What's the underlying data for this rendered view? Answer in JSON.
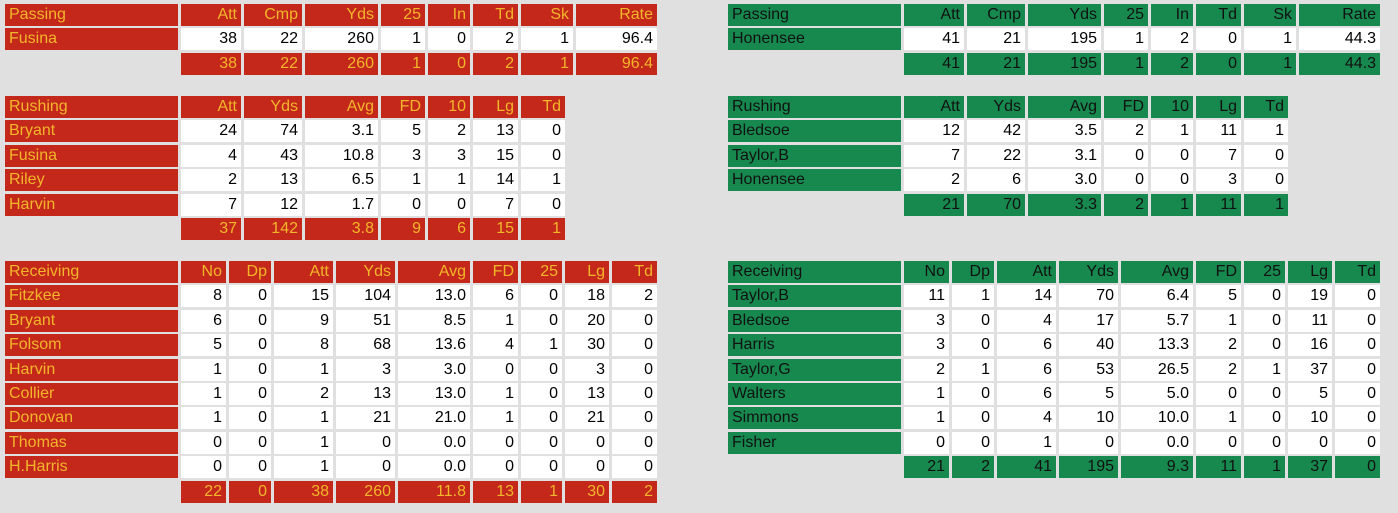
{
  "teams": [
    {
      "passing": {
        "header": [
          "Passing",
          "Att",
          "Cmp",
          "Yds",
          "25",
          "In",
          "Td",
          "Sk",
          "Rate"
        ],
        "rows": [
          [
            "Fusina",
            "38",
            "22",
            "260",
            "1",
            "0",
            "2",
            "1",
            "96.4"
          ]
        ],
        "totals": [
          "38",
          "22",
          "260",
          "1",
          "0",
          "2",
          "1",
          "96.4"
        ]
      },
      "rushing": {
        "header": [
          "Rushing",
          "Att",
          "Yds",
          "Avg",
          "FD",
          "10",
          "Lg",
          "Td"
        ],
        "rows": [
          [
            "Bryant",
            "24",
            "74",
            "3.1",
            "5",
            "2",
            "13",
            "0"
          ],
          [
            "Fusina",
            "4",
            "43",
            "10.8",
            "3",
            "3",
            "15",
            "0"
          ],
          [
            "Riley",
            "2",
            "13",
            "6.5",
            "1",
            "1",
            "14",
            "1"
          ],
          [
            "Harvin",
            "7",
            "12",
            "1.7",
            "0",
            "0",
            "7",
            "0"
          ]
        ],
        "totals": [
          "37",
          "142",
          "3.8",
          "9",
          "6",
          "15",
          "1"
        ]
      },
      "receiving": {
        "header": [
          "Receiving",
          "No",
          "Dp",
          "Att",
          "Yds",
          "Avg",
          "FD",
          "25",
          "Lg",
          "Td"
        ],
        "rows": [
          [
            "Fitzkee",
            "8",
            "0",
            "15",
            "104",
            "13.0",
            "6",
            "0",
            "18",
            "2"
          ],
          [
            "Bryant",
            "6",
            "0",
            "9",
            "51",
            "8.5",
            "1",
            "0",
            "20",
            "0"
          ],
          [
            "Folsom",
            "5",
            "0",
            "8",
            "68",
            "13.6",
            "4",
            "1",
            "30",
            "0"
          ],
          [
            "Harvin",
            "1",
            "0",
            "1",
            "3",
            "3.0",
            "0",
            "0",
            "3",
            "0"
          ],
          [
            "Collier",
            "1",
            "0",
            "2",
            "13",
            "13.0",
            "1",
            "0",
            "13",
            "0"
          ],
          [
            "Donovan",
            "1",
            "0",
            "1",
            "21",
            "21.0",
            "1",
            "0",
            "21",
            "0"
          ],
          [
            "Thomas",
            "0",
            "0",
            "1",
            "0",
            "0.0",
            "0",
            "0",
            "0",
            "0"
          ],
          [
            "H.Harris",
            "0",
            "0",
            "1",
            "0",
            "0.0",
            "0",
            "0",
            "0",
            "0"
          ]
        ],
        "totals": [
          "22",
          "0",
          "38",
          "260",
          "11.8",
          "13",
          "1",
          "30",
          "2"
        ]
      }
    },
    {
      "passing": {
        "header": [
          "Passing",
          "Att",
          "Cmp",
          "Yds",
          "25",
          "In",
          "Td",
          "Sk",
          "Rate"
        ],
        "rows": [
          [
            "Honensee",
            "41",
            "21",
            "195",
            "1",
            "2",
            "0",
            "1",
            "44.3"
          ]
        ],
        "totals": [
          "41",
          "21",
          "195",
          "1",
          "2",
          "0",
          "1",
          "44.3"
        ]
      },
      "rushing": {
        "header": [
          "Rushing",
          "Att",
          "Yds",
          "Avg",
          "FD",
          "10",
          "Lg",
          "Td"
        ],
        "rows": [
          [
            "Bledsoe",
            "12",
            "42",
            "3.5",
            "2",
            "1",
            "11",
            "1"
          ],
          [
            "Taylor,B",
            "7",
            "22",
            "3.1",
            "0",
            "0",
            "7",
            "0"
          ],
          [
            "Honensee",
            "2",
            "6",
            "3.0",
            "0",
            "0",
            "3",
            "0"
          ]
        ],
        "totals": [
          "21",
          "70",
          "3.3",
          "2",
          "1",
          "11",
          "1"
        ]
      },
      "receiving": {
        "header": [
          "Receiving",
          "No",
          "Dp",
          "Att",
          "Yds",
          "Avg",
          "FD",
          "25",
          "Lg",
          "Td"
        ],
        "rows": [
          [
            "Taylor,B",
            "11",
            "1",
            "14",
            "70",
            "6.4",
            "5",
            "0",
            "19",
            "0"
          ],
          [
            "Bledsoe",
            "3",
            "0",
            "4",
            "17",
            "5.7",
            "1",
            "0",
            "11",
            "0"
          ],
          [
            "Harris",
            "3",
            "0",
            "6",
            "40",
            "13.3",
            "2",
            "0",
            "16",
            "0"
          ],
          [
            "Taylor,G",
            "2",
            "1",
            "6",
            "53",
            "26.5",
            "2",
            "1",
            "37",
            "0"
          ],
          [
            "Walters",
            "1",
            "0",
            "6",
            "5",
            "5.0",
            "0",
            "0",
            "5",
            "0"
          ],
          [
            "Simmons",
            "1",
            "0",
            "4",
            "10",
            "10.0",
            "1",
            "0",
            "10",
            "0"
          ],
          [
            "Fisher",
            "0",
            "0",
            "1",
            "0",
            "0.0",
            "0",
            "0",
            "0",
            "0"
          ]
        ],
        "totals": [
          "21",
          "2",
          "41",
          "195",
          "9.3",
          "11",
          "1",
          "37",
          "0"
        ]
      }
    }
  ]
}
